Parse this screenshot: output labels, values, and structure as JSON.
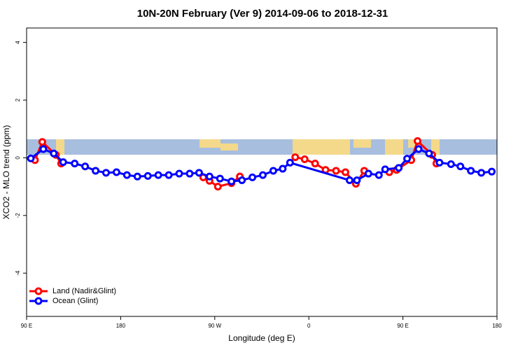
{
  "chart_data": {
    "type": "line",
    "title": "10N-20N February (Ver 9)   2014-09-06 to 2018-12-31",
    "x_label": "Longitude (deg E)",
    "y_label": "XCO2 - MLO trend (ppm)",
    "xlim": [
      90,
      540
    ],
    "xticks": [
      {
        "value": 90,
        "label": "90 E"
      },
      180,
      {
        "value": 270,
        "label": "90 W"
      },
      {
        "value": 360,
        "label": "0"
      },
      {
        "value": 450,
        "label": "90 E"
      },
      {
        "value": 540,
        "label": "180"
      }
    ],
    "ylim": [
      -5.5,
      4.5
    ],
    "yticks": [
      -4,
      -2,
      0,
      2,
      4
    ],
    "legend": "bottom-left",
    "series": [
      {
        "name": "Land (Nadir&Glint)",
        "color": "#ff0000",
        "x": [
          98,
          105,
          118,
          123,
          null,
          259,
          265,
          273,
          286,
          294,
          null,
          347,
          356,
          366,
          376,
          386,
          395,
          405,
          413,
          null,
          437,
          444,
          458,
          464,
          478,
          482
        ],
        "values": [
          -0.08,
          0.55,
          0.1,
          -0.2,
          null,
          -0.68,
          -0.8,
          -1.0,
          -0.88,
          -0.65,
          null,
          0.02,
          -0.05,
          -0.2,
          -0.42,
          -0.45,
          -0.5,
          -0.9,
          -0.45,
          null,
          -0.5,
          -0.42,
          -0.08,
          0.58,
          0.1,
          -0.2
        ]
      },
      {
        "name": "Ocean (Glint)",
        "color": "#0000ff",
        "x": [
          94,
          106,
          116,
          125,
          136,
          146,
          156,
          166,
          176,
          186,
          196,
          206,
          216,
          226,
          236,
          246,
          255,
          265,
          275,
          286,
          296,
          306,
          316,
          326,
          335,
          342,
          399,
          406,
          417,
          427,
          433,
          446,
          454,
          465,
          475,
          485,
          496,
          505,
          515,
          525,
          535
        ],
        "values": [
          -0.02,
          0.3,
          0.15,
          -0.15,
          -0.2,
          -0.3,
          -0.45,
          -0.52,
          -0.5,
          -0.6,
          -0.65,
          -0.63,
          -0.6,
          -0.6,
          -0.55,
          -0.55,
          -0.52,
          -0.65,
          -0.72,
          -0.82,
          -0.78,
          -0.68,
          -0.6,
          -0.45,
          -0.38,
          -0.17,
          -0.78,
          -0.78,
          -0.55,
          -0.6,
          -0.4,
          -0.35,
          -0.03,
          0.3,
          0.15,
          -0.17,
          -0.22,
          -0.3,
          -0.45,
          -0.52,
          -0.48
        ]
      }
    ]
  }
}
